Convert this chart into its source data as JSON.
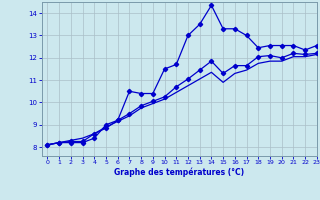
{
  "x_data": [
    0,
    1,
    2,
    3,
    4,
    5,
    6,
    7,
    8,
    9,
    10,
    11,
    12,
    13,
    14,
    15,
    16,
    17,
    18,
    19,
    20,
    21,
    22,
    23
  ],
  "line1_y": [
    8.1,
    8.2,
    8.2,
    8.2,
    8.4,
    9.0,
    9.2,
    10.5,
    10.4,
    10.4,
    11.5,
    11.7,
    13.0,
    13.5,
    14.35,
    13.3,
    13.3,
    13.0,
    12.45,
    12.55,
    12.55,
    12.55,
    12.35,
    12.55
  ],
  "line2_y": [
    8.1,
    8.2,
    8.25,
    8.25,
    8.6,
    8.85,
    9.2,
    9.5,
    9.85,
    10.05,
    10.25,
    10.7,
    11.05,
    11.45,
    11.85,
    11.3,
    11.65,
    11.65,
    12.05,
    12.1,
    12.0,
    12.2,
    12.15,
    12.2
  ],
  "line3_y": [
    8.1,
    8.2,
    8.3,
    8.4,
    8.6,
    8.9,
    9.15,
    9.4,
    9.75,
    9.95,
    10.15,
    10.45,
    10.75,
    11.05,
    11.35,
    10.9,
    11.3,
    11.45,
    11.75,
    11.85,
    11.85,
    12.05,
    12.05,
    12.15
  ],
  "line_color": "#0000cc",
  "bg_color": "#cce8ee",
  "grid_color": "#aabfc8",
  "xlabel": "Graphe des températures (°C)",
  "ylim": [
    7.6,
    14.5
  ],
  "xlim": [
    -0.5,
    23
  ],
  "yticks": [
    8,
    9,
    10,
    11,
    12,
    13,
    14
  ],
  "xticks": [
    0,
    1,
    2,
    3,
    4,
    5,
    6,
    7,
    8,
    9,
    10,
    11,
    12,
    13,
    14,
    15,
    16,
    17,
    18,
    19,
    20,
    21,
    22,
    23
  ]
}
